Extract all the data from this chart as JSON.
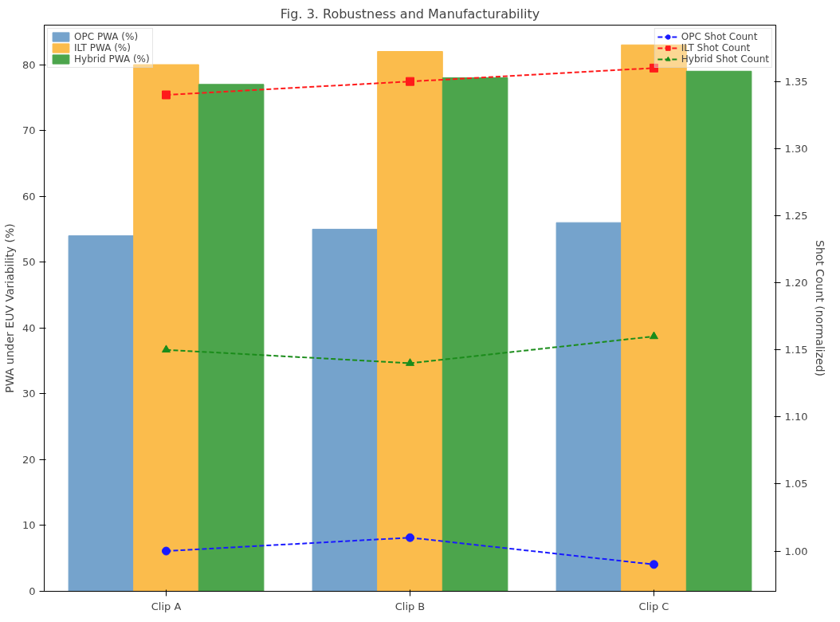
{
  "chart_data": {
    "type": "bar",
    "title": "Fig. 3. Robustness and Manufacturability",
    "categories": [
      "Clip A",
      "Clip B",
      "Clip C"
    ],
    "ylabel": "PWA under EUV Variability (%)",
    "y2label": "Shot Count (normalized)",
    "ylim": [
      0,
      86
    ],
    "yticks": [
      0,
      10,
      20,
      30,
      40,
      50,
      60,
      70,
      80
    ],
    "y2lim": [
      0.97,
      1.392
    ],
    "y2ticks": [
      {
        "value": 1.0,
        "label": "1.00"
      },
      {
        "value": 1.05,
        "label": "1.05"
      },
      {
        "value": 1.1,
        "label": "1.10"
      },
      {
        "value": 1.15,
        "label": "1.15"
      },
      {
        "value": 1.2,
        "label": "1.20"
      },
      {
        "value": 1.25,
        "label": "1.25"
      },
      {
        "value": 1.3,
        "label": "1.30"
      },
      {
        "value": 1.35,
        "label": "1.35"
      }
    ],
    "grid": false,
    "legend": "top left",
    "series": [
      {
        "name": "OPC PWA (%)",
        "color": "#75a3cc",
        "values": [
          54,
          55,
          56
        ]
      },
      {
        "name": "ILT PWA (%)",
        "color": "#fbbc4c",
        "values": [
          80,
          82,
          83
        ]
      },
      {
        "name": "Hybrid PWA (%)",
        "color": "#4ca54c",
        "values": [
          77,
          78,
          79
        ]
      },
      {
        "name": "OPC Shot Count",
        "type": "line",
        "axis": "y2",
        "color": "#1a1aff",
        "marker": "circle",
        "line_style": "dashed",
        "values": [
          1.0,
          1.01,
          0.99
        ]
      },
      {
        "name": "ILT Shot Count",
        "type": "line",
        "axis": "y2",
        "color": "#ff1a1a",
        "marker": "square",
        "line_style": "dashed",
        "values": [
          1.34,
          1.35,
          1.36
        ]
      },
      {
        "name": "Hybrid Shot Count",
        "type": "line",
        "axis": "y2",
        "color": "#1a8c1a",
        "marker": "triangle",
        "line_style": "dashed",
        "values": [
          1.15,
          1.14,
          1.16
        ]
      }
    ]
  }
}
